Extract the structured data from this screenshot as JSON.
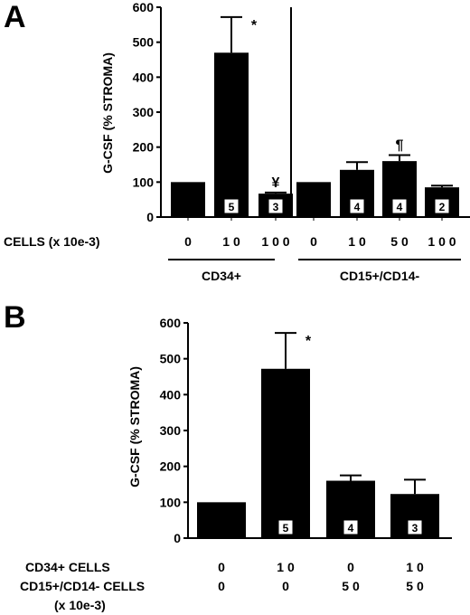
{
  "colors": {
    "bar": "#000000",
    "box": "#ffffff",
    "background": "#ffffff"
  },
  "chart_data": [
    {
      "panel": "A",
      "type": "bar",
      "ylabel": "G-CSF  (% STROMA)",
      "ylim": [
        0,
        600
      ],
      "yticks": [
        "0",
        "100",
        "200",
        "300",
        "400",
        "500",
        "600"
      ],
      "x_row_label": "CELLS  (x  10e-3)",
      "groups": [
        {
          "label": "CD34+",
          "categories": [
            "0",
            "1 0",
            "1 0 0"
          ]
        },
        {
          "label": "CD15+/CD14-",
          "categories": [
            "0",
            "1 0",
            "5 0",
            "1 0 0"
          ]
        }
      ],
      "bars": [
        {
          "group": 0,
          "category": "0",
          "value": 100,
          "error": 0,
          "n": "",
          "annotation": ""
        },
        {
          "group": 0,
          "category": "1 0",
          "value": 470,
          "error": 102,
          "n": "5",
          "annotation": "*"
        },
        {
          "group": 0,
          "category": "1 0 0",
          "value": 67,
          "error": 3,
          "n": "3",
          "annotation": "¥"
        },
        {
          "group": 1,
          "category": "0",
          "value": 100,
          "error": 0,
          "n": "",
          "annotation": ""
        },
        {
          "group": 1,
          "category": "1 0",
          "value": 135,
          "error": 22,
          "n": "4",
          "annotation": ""
        },
        {
          "group": 1,
          "category": "5 0",
          "value": 160,
          "error": 17,
          "n": "4",
          "annotation": "¶"
        },
        {
          "group": 1,
          "category": "1 0 0",
          "value": 85,
          "error": 5,
          "n": "2",
          "annotation": ""
        }
      ]
    },
    {
      "panel": "B",
      "type": "bar",
      "ylabel": "G-CSF  (% STROMA)",
      "ylim": [
        0,
        600
      ],
      "yticks": [
        "0",
        "100",
        "200",
        "300",
        "400",
        "500",
        "600"
      ],
      "row_labels": [
        "CD34+ CELLS",
        "CD15+/CD14-  CELLS",
        "(x 10e-3)"
      ],
      "columns": [
        {
          "cd34": "0",
          "cd15": "0",
          "value": 100,
          "error": 0,
          "n": "",
          "annotation": ""
        },
        {
          "cd34": "1 0",
          "cd15": "0",
          "value": 472,
          "error": 100,
          "n": "5",
          "annotation": "*"
        },
        {
          "cd34": "0",
          "cd15": "5 0",
          "value": 160,
          "error": 15,
          "n": "4",
          "annotation": ""
        },
        {
          "cd34": "1 0",
          "cd15": "5 0",
          "value": 123,
          "error": 40,
          "n": "3",
          "annotation": ""
        }
      ]
    }
  ]
}
